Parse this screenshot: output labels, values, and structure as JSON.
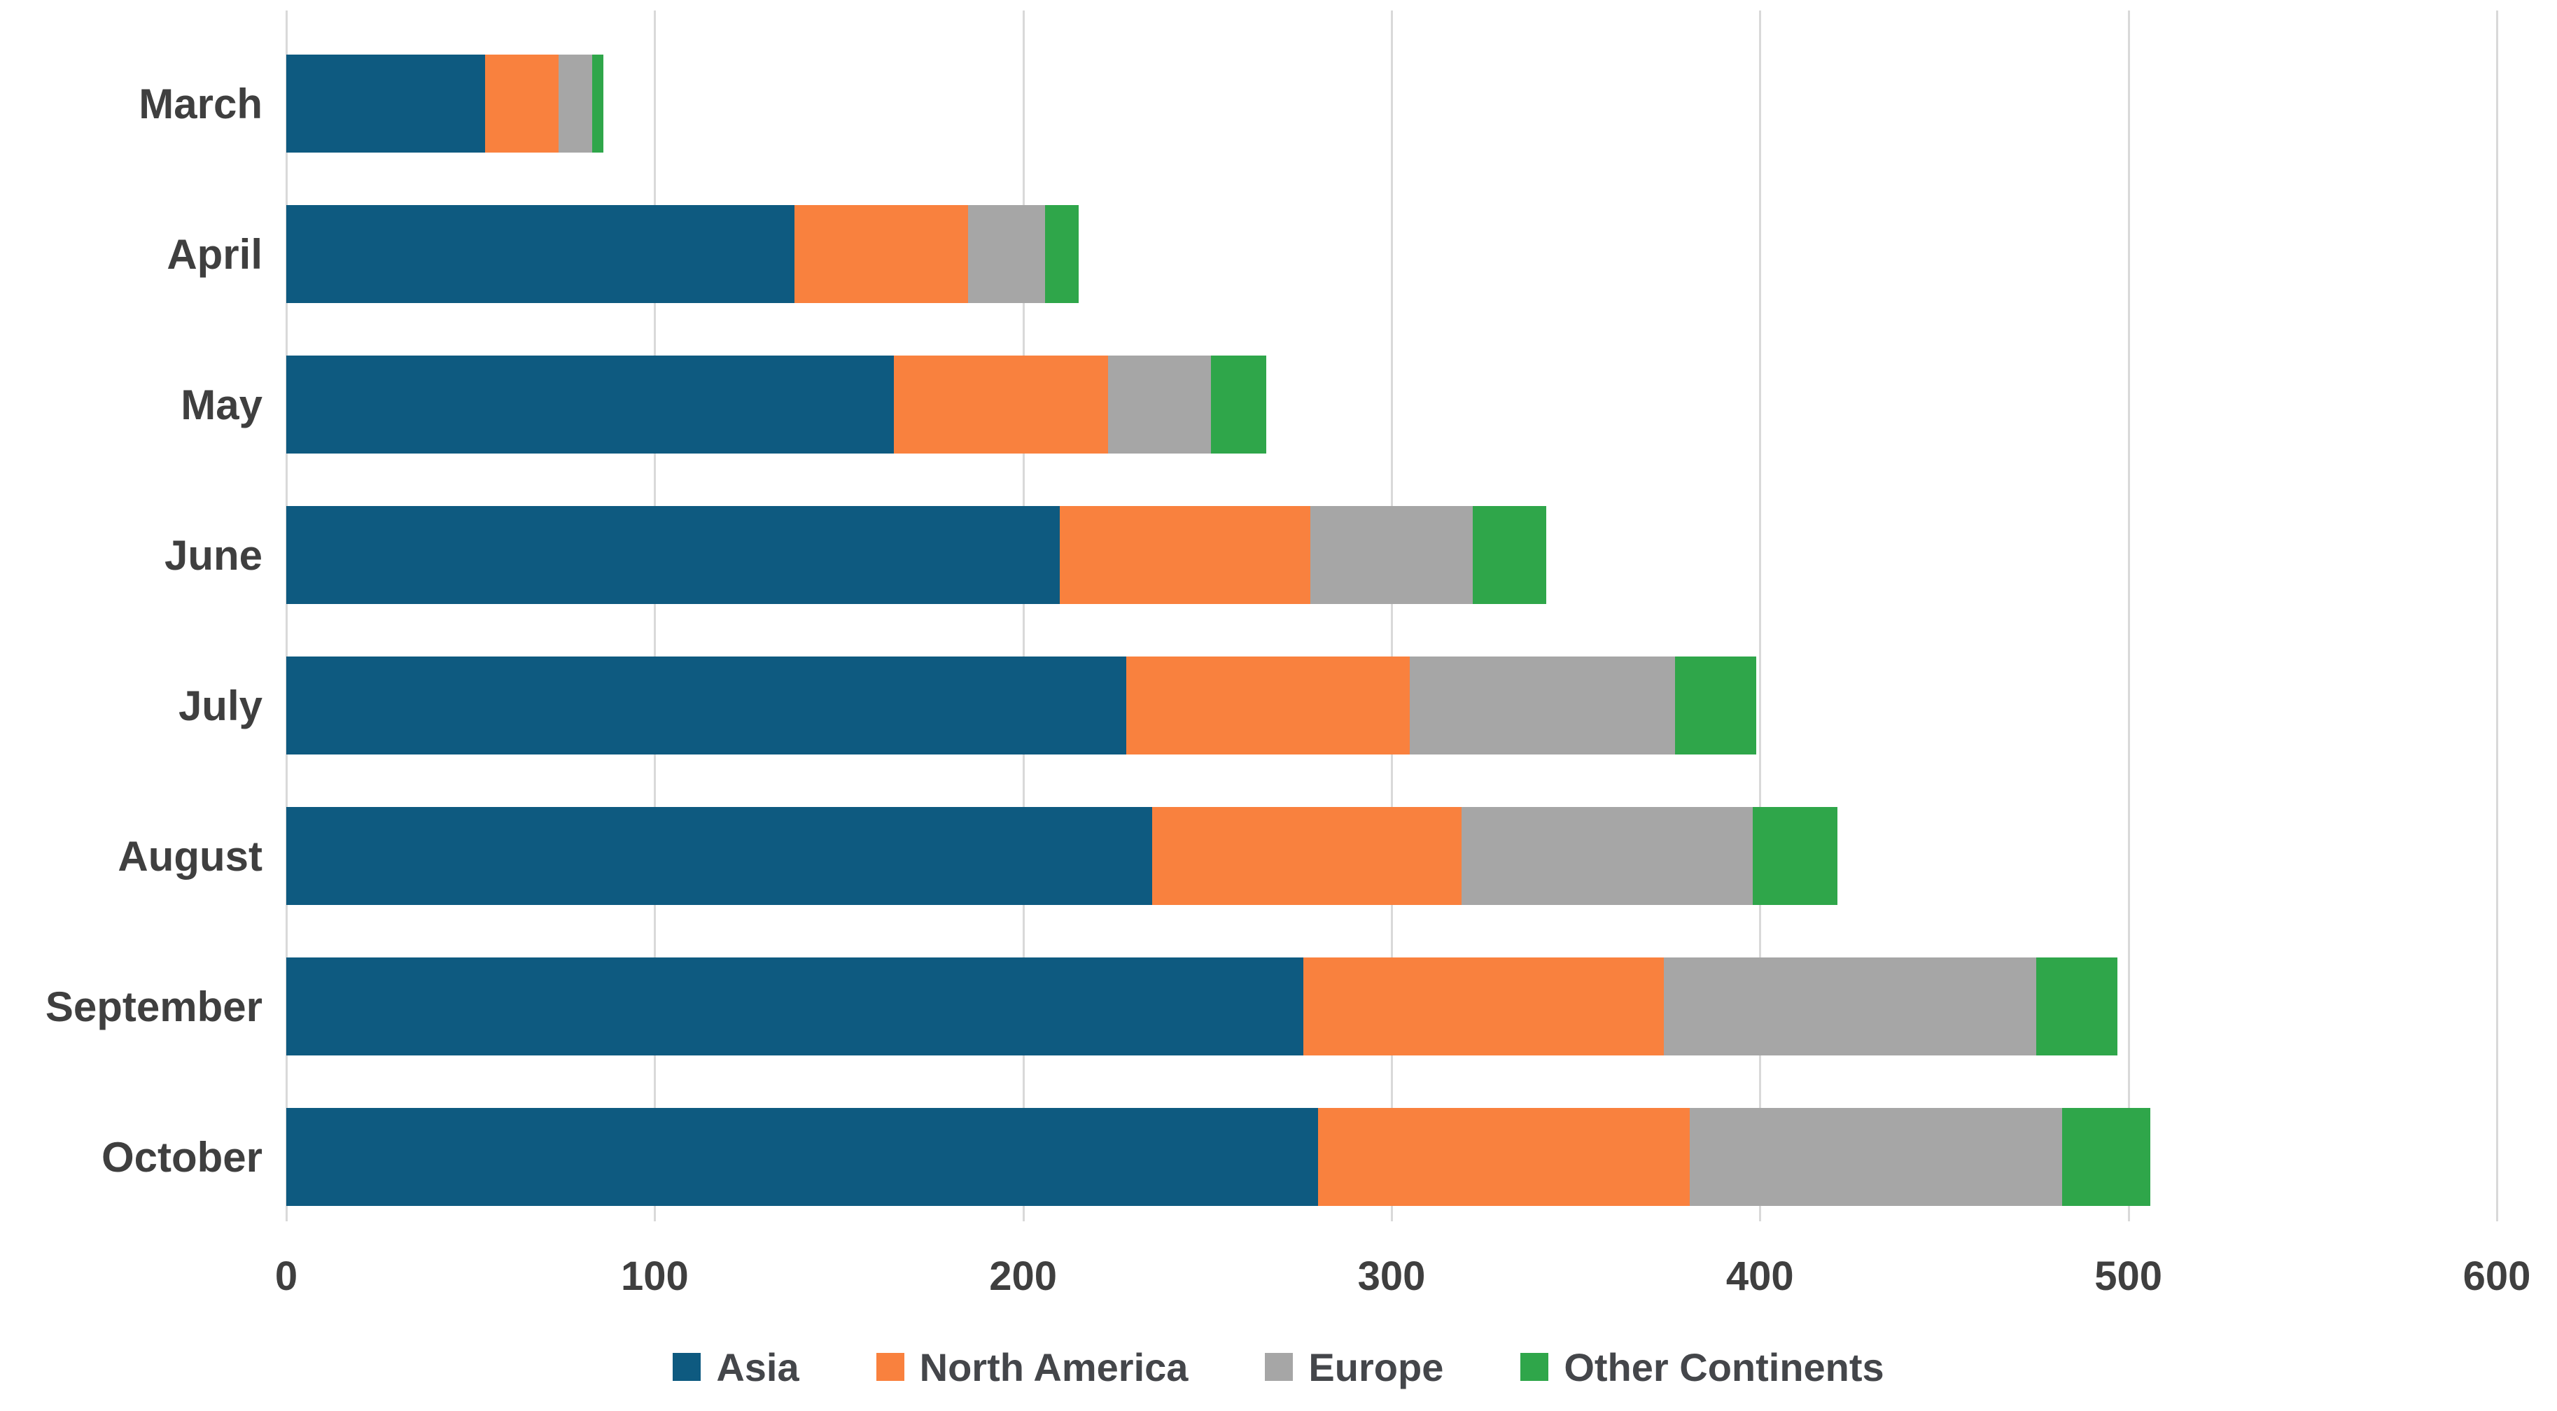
{
  "colors": {
    "grid": "#D9D9D9",
    "axis_text": "#3F3F3F",
    "legend_text": "#44464A",
    "background": "#FFFFFF"
  },
  "chart_data": {
    "type": "bar",
    "orientation": "horizontal",
    "stacked": true,
    "title": "",
    "xlabel": "",
    "ylabel": "",
    "categories": [
      "March",
      "April",
      "May",
      "June",
      "July",
      "August",
      "September",
      "October"
    ],
    "series": [
      {
        "name": "Asia",
        "color": "#0E5A80",
        "values": [
          54,
          138,
          165,
          210,
          228,
          235,
          276,
          280
        ]
      },
      {
        "name": "North America",
        "color": "#F9813E",
        "values": [
          20,
          47,
          58,
          68,
          77,
          84,
          98,
          101
        ]
      },
      {
        "name": "Europe",
        "color": "#A6A6A6",
        "values": [
          9,
          21,
          28,
          44,
          72,
          79,
          101,
          101
        ]
      },
      {
        "name": "Other Continents",
        "color": "#2FA64A",
        "values": [
          3,
          9,
          15,
          20,
          22,
          23,
          22,
          24
        ]
      }
    ],
    "totals": [
      86,
      215,
      266,
      342,
      399,
      421,
      497,
      506
    ],
    "xlim": [
      0,
      600
    ],
    "xticks": [
      0,
      100,
      200,
      300,
      400,
      500,
      600
    ],
    "grid": "vertical-gridlines-on",
    "legend_position": "bottom-center"
  }
}
